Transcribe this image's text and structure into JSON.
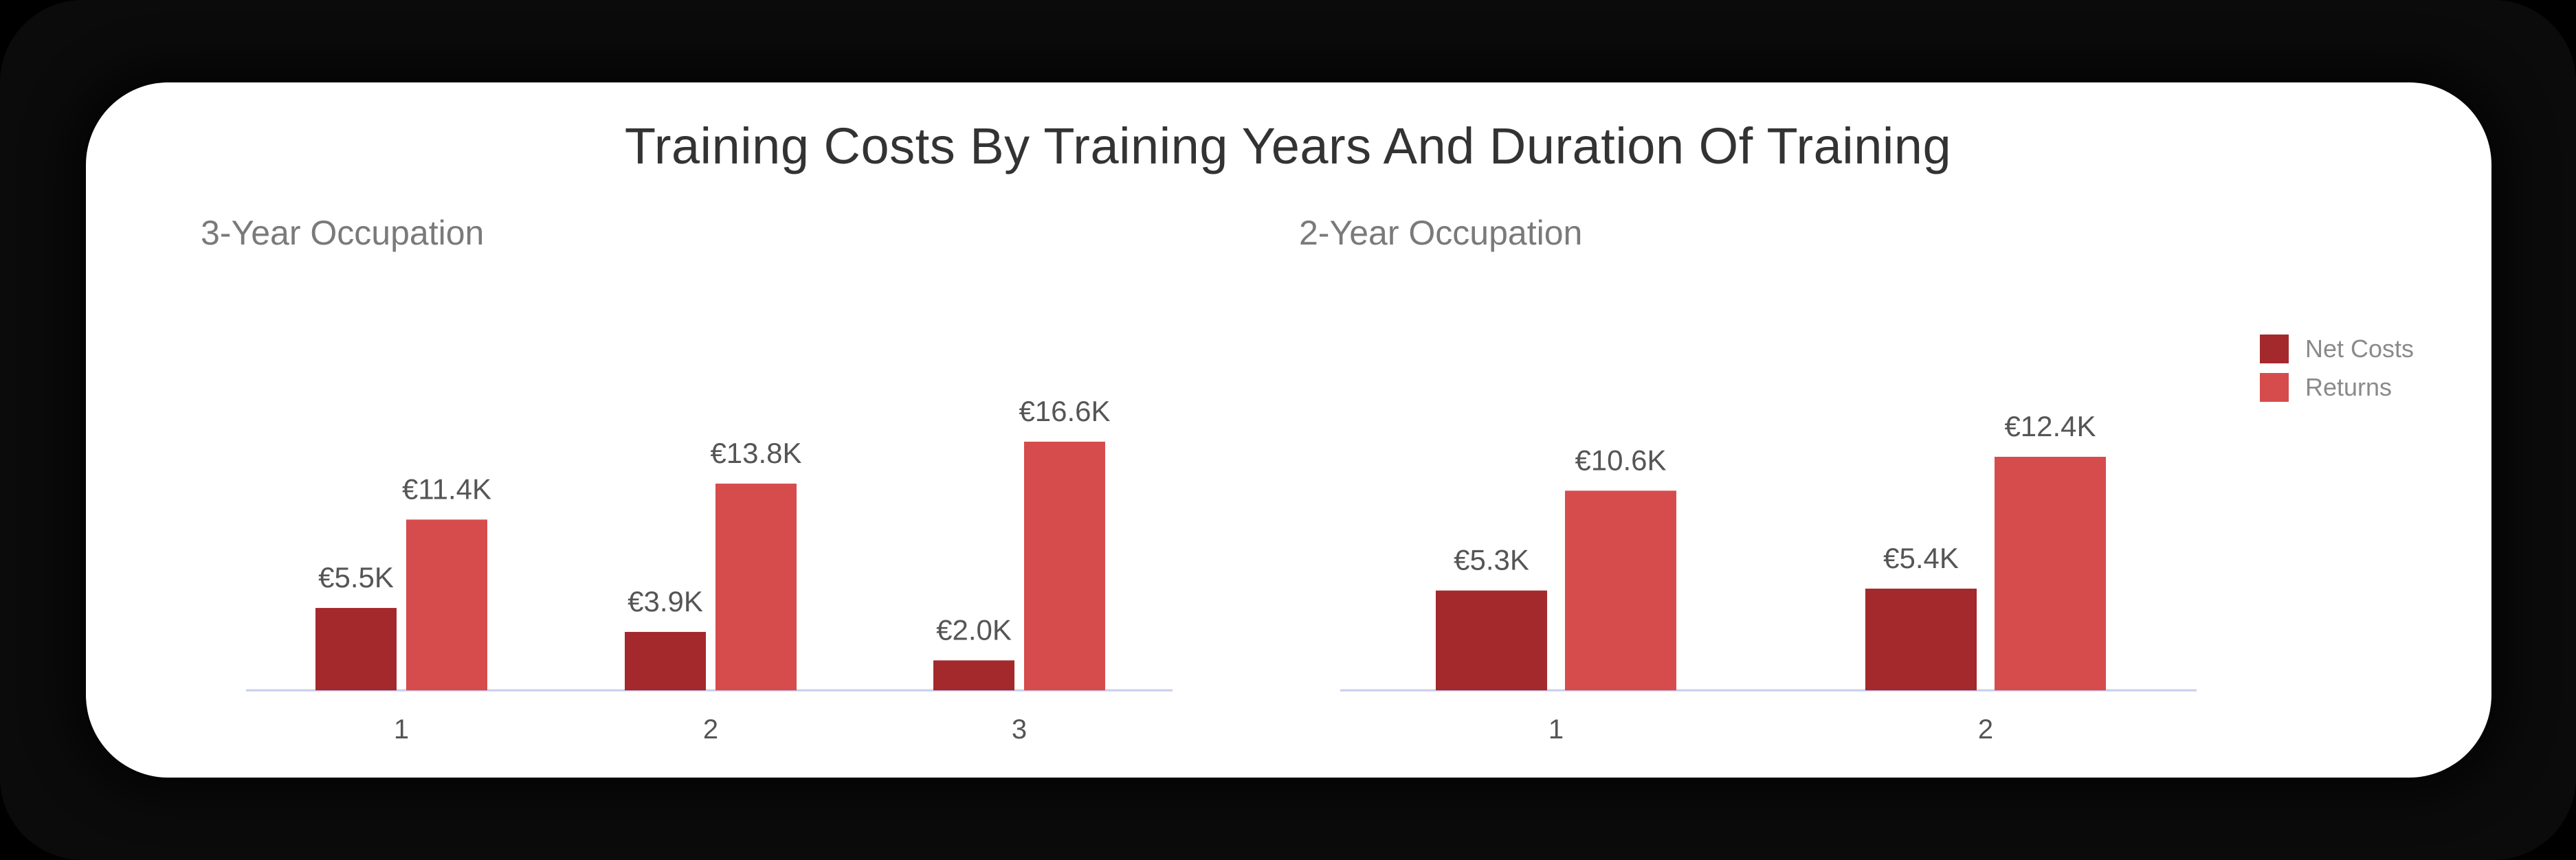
{
  "title": "Training Costs By Training Years And Duration Of Training",
  "colors": {
    "net_costs": "#a3292c",
    "returns": "#d64c4d",
    "axis": "#c9cdeb",
    "label": "#555555",
    "tick": "#555555"
  },
  "legend": [
    {
      "label": "Net Costs",
      "color": "#a3292c"
    },
    {
      "label": "Returns",
      "color": "#d64c4d"
    }
  ],
  "chart_data": [
    {
      "type": "bar",
      "subtitle": "3-Year Occupation",
      "categories": [
        "1",
        "2",
        "3"
      ],
      "series": [
        {
          "name": "Net Costs",
          "values": [
            5.5,
            3.9,
            2.0
          ],
          "labels": [
            "€5.5K",
            "€3.9K",
            "€2.0K"
          ]
        },
        {
          "name": "Returns",
          "values": [
            11.4,
            13.8,
            16.6
          ],
          "labels": [
            "€11.4K",
            "€13.8K",
            "€16.6K"
          ]
        }
      ],
      "ylim": [
        0,
        16.6
      ]
    },
    {
      "type": "bar",
      "subtitle": "2-Year Occupation",
      "categories": [
        "1",
        "2"
      ],
      "series": [
        {
          "name": "Net Costs",
          "values": [
            5.3,
            5.4
          ],
          "labels": [
            "€5.3K",
            "€5.4K"
          ]
        },
        {
          "name": "Returns",
          "values": [
            10.6,
            12.4
          ],
          "labels": [
            "€10.6K",
            "€12.4K"
          ]
        }
      ],
      "ylim": [
        0,
        12.4
      ]
    }
  ]
}
